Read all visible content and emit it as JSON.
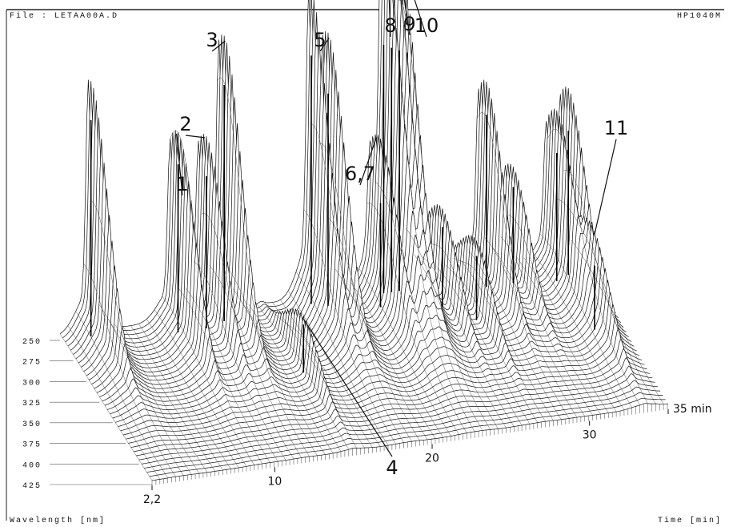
{
  "chart_data": {
    "type": "surface3d",
    "title": "File : LETAA00A.D",
    "subtitle": "HP1040M",
    "xlabel": "Time [min]",
    "ylabel": "Wavelength [nm]",
    "xlim": [
      2.2,
      35
    ],
    "xticks": [
      {
        "value": 2.2,
        "label": "2,2"
      },
      10,
      20,
      30,
      {
        "value": 35,
        "label": "35 min"
      }
    ],
    "ylim": [
      250,
      425
    ],
    "yticks": [
      250,
      275,
      300,
      325,
      350,
      375,
      400,
      425
    ],
    "peaks": [
      {
        "x": 4.0,
        "y": 255,
        "height": 270
      },
      {
        "x": 9.2,
        "y": 265,
        "height": 210
      },
      {
        "x": 11.0,
        "y": 265,
        "height": 190
      },
      {
        "x": 12.3,
        "y": 260,
        "height": 295
      },
      {
        "x": 15.0,
        "y": 330,
        "height": 60
      },
      {
        "x": 18.0,
        "y": 255,
        "height": 310
      },
      {
        "x": 18.9,
        "y": 260,
        "height": 265
      },
      {
        "x": 21.9,
        "y": 270,
        "height": 130
      },
      {
        "x": 22.6,
        "y": 255,
        "height": 310
      },
      {
        "x": 23.1,
        "y": 255,
        "height": 305
      },
      {
        "x": 23.6,
        "y": 255,
        "height": 300
      },
      {
        "x": 25.5,
        "y": 280,
        "height": 100
      },
      {
        "x": 27.0,
        "y": 300,
        "height": 80
      },
      {
        "x": 28.8,
        "y": 265,
        "height": 215
      },
      {
        "x": 30.5,
        "y": 265,
        "height": 120
      },
      {
        "x": 33.1,
        "y": 270,
        "height": 160
      },
      {
        "x": 34.0,
        "y": 265,
        "height": 180
      },
      {
        "x": 33.5,
        "y": 330,
        "height": 80
      }
    ],
    "annotations": [
      {
        "text": "1",
        "x": 9.2
      },
      {
        "text": "2",
        "x": 11.0
      },
      {
        "text": "3",
        "x": 12.3
      },
      {
        "text": "4",
        "x": 15.0
      },
      {
        "text": "5",
        "x": 18.9
      },
      {
        "text": "6,7",
        "x": 21.9
      },
      {
        "text": "8",
        "x": 22.6
      },
      {
        "text": "9",
        "x": 23.1
      },
      {
        "text": "10",
        "x": 23.6
      },
      {
        "text": "11",
        "x": 33.5
      }
    ]
  }
}
